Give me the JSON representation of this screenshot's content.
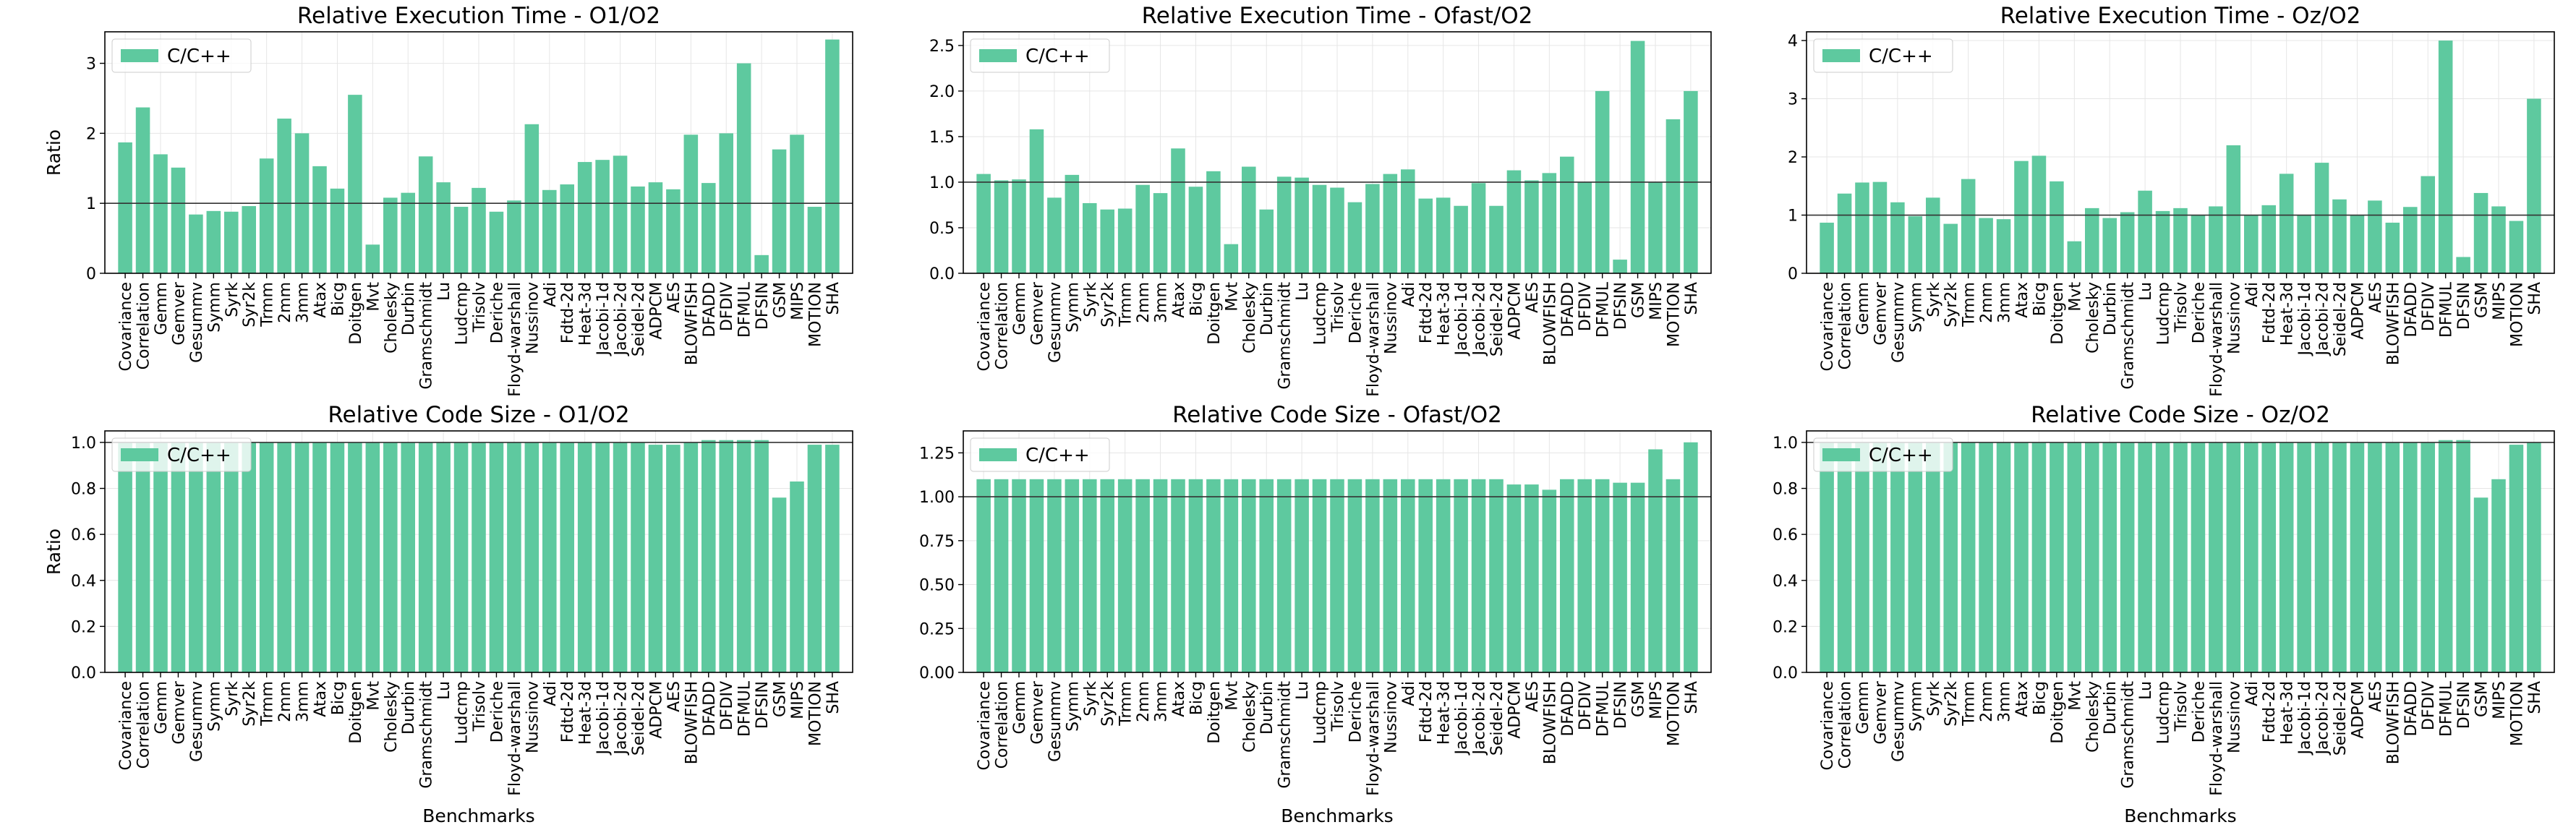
{
  "chart_data": [
    {
      "type": "bar",
      "title": "Relative Execution Time - O1/O2",
      "ylabel": "Ratio",
      "xlabel": "",
      "ylim": [
        0,
        3.45
      ],
      "yticks": [
        0,
        1,
        2,
        3
      ],
      "reference_line": 1.0,
      "legend": "C/C++",
      "legend_position": "top-left",
      "grid": true,
      "categories": [
        "Covariance",
        "Correlation",
        "Gemm",
        "Gemver",
        "Gesummv",
        "Symm",
        "Syrk",
        "Syr2k",
        "Trmm",
        "2mm",
        "3mm",
        "Atax",
        "Bicg",
        "Doitgen",
        "Mvt",
        "Cholesky",
        "Durbin",
        "Gramschmidt",
        "Lu",
        "Ludcmp",
        "Trisolv",
        "Deriche",
        "Floyd-warshall",
        "Nussinov",
        "Adi",
        "Fdtd-2d",
        "Heat-3d",
        "Jacobi-1d",
        "Jacobi-2d",
        "Seidel-2d",
        "ADPCM",
        "AES",
        "BLOWFISH",
        "DFADD",
        "DFDIV",
        "DFMUL",
        "DFSIN",
        "GSM",
        "MIPS",
        "MOTION",
        "SHA"
      ],
      "values": [
        1.87,
        2.37,
        1.7,
        1.51,
        0.84,
        0.89,
        0.88,
        0.96,
        1.64,
        2.21,
        2.0,
        1.53,
        1.21,
        2.55,
        0.41,
        1.08,
        1.15,
        1.67,
        1.3,
        0.95,
        1.22,
        0.88,
        1.04,
        2.13,
        1.19,
        1.27,
        1.59,
        1.62,
        1.68,
        1.24,
        1.3,
        1.2,
        1.98,
        1.29,
        2.0,
        3.0,
        0.26,
        1.77,
        1.98,
        0.95,
        3.34
      ]
    },
    {
      "type": "bar",
      "title": "Relative Execution Time - Ofast/O2",
      "ylabel": "",
      "xlabel": "",
      "ylim": [
        0,
        2.65
      ],
      "yticks": [
        0.0,
        0.5,
        1.0,
        1.5,
        2.0,
        2.5
      ],
      "reference_line": 1.0,
      "legend": "C/C++",
      "legend_position": "top-left",
      "grid": true,
      "categories": [
        "Covariance",
        "Correlation",
        "Gemm",
        "Gemver",
        "Gesummv",
        "Symm",
        "Syrk",
        "Syr2k",
        "Trmm",
        "2mm",
        "3mm",
        "Atax",
        "Bicg",
        "Doitgen",
        "Mvt",
        "Cholesky",
        "Durbin",
        "Gramschmidt",
        "Lu",
        "Ludcmp",
        "Trisolv",
        "Deriche",
        "Floyd-warshall",
        "Nussinov",
        "Adi",
        "Fdtd-2d",
        "Heat-3d",
        "Jacobi-1d",
        "Jacobi-2d",
        "Seidel-2d",
        "ADPCM",
        "AES",
        "BLOWFISH",
        "DFADD",
        "DFDIV",
        "DFMUL",
        "DFSIN",
        "GSM",
        "MIPS",
        "MOTION",
        "SHA"
      ],
      "values": [
        1.09,
        1.02,
        1.03,
        1.58,
        0.83,
        1.08,
        0.77,
        0.7,
        0.71,
        0.97,
        0.88,
        1.37,
        0.95,
        1.12,
        0.32,
        1.17,
        0.7,
        1.06,
        1.05,
        0.97,
        0.94,
        0.78,
        0.98,
        1.09,
        1.14,
        0.82,
        0.83,
        0.74,
        0.99,
        0.74,
        1.13,
        1.02,
        1.1,
        1.28,
        1.0,
        2.0,
        0.15,
        2.55,
        1.0,
        1.69,
        2.0
      ]
    },
    {
      "type": "bar",
      "title": "Relative Execution Time - Oz/O2",
      "ylabel": "",
      "xlabel": "",
      "ylim": [
        0,
        4.15
      ],
      "yticks": [
        0,
        1,
        2,
        3,
        4
      ],
      "reference_line": 1.0,
      "legend": "C/C++",
      "legend_position": "top-left",
      "grid": true,
      "categories": [
        "Covariance",
        "Correlation",
        "Gemm",
        "Gemver",
        "Gesummv",
        "Symm",
        "Syrk",
        "Syr2k",
        "Trmm",
        "2mm",
        "3mm",
        "Atax",
        "Bicg",
        "Doitgen",
        "Mvt",
        "Cholesky",
        "Durbin",
        "Gramschmidt",
        "Lu",
        "Ludcmp",
        "Trisolv",
        "Deriche",
        "Floyd-warshall",
        "Nussinov",
        "Adi",
        "Fdtd-2d",
        "Heat-3d",
        "Jacobi-1d",
        "Jacobi-2d",
        "Seidel-2d",
        "ADPCM",
        "AES",
        "BLOWFISH",
        "DFADD",
        "DFDIV",
        "DFMUL",
        "DFSIN",
        "GSM",
        "MIPS",
        "MOTION",
        "SHA"
      ],
      "values": [
        0.87,
        1.37,
        1.56,
        1.57,
        1.22,
        0.98,
        1.3,
        0.85,
        1.62,
        0.95,
        0.93,
        1.93,
        2.02,
        1.58,
        0.55,
        1.12,
        0.95,
        1.05,
        1.42,
        1.07,
        1.12,
        1.0,
        1.15,
        2.2,
        1.0,
        1.17,
        1.71,
        1.0,
        1.9,
        1.27,
        1.0,
        1.25,
        0.87,
        1.14,
        1.67,
        4.0,
        0.28,
        1.38,
        1.15,
        0.9,
        3.0
      ]
    },
    {
      "type": "bar",
      "title": "Relative Code Size - O1/O2",
      "ylabel": "Ratio",
      "xlabel": "Benchmarks",
      "ylim": [
        0,
        1.05
      ],
      "yticks": [
        0.0,
        0.2,
        0.4,
        0.6,
        0.8,
        1.0
      ],
      "reference_line": 1.0,
      "legend": "C/C++",
      "legend_position": "top-left",
      "grid": true,
      "categories": [
        "Covariance",
        "Correlation",
        "Gemm",
        "Gemver",
        "Gesummv",
        "Symm",
        "Syrk",
        "Syr2k",
        "Trmm",
        "2mm",
        "3mm",
        "Atax",
        "Bicg",
        "Doitgen",
        "Mvt",
        "Cholesky",
        "Durbin",
        "Gramschmidt",
        "Lu",
        "Ludcmp",
        "Trisolv",
        "Deriche",
        "Floyd-warshall",
        "Nussinov",
        "Adi",
        "Fdtd-2d",
        "Heat-3d",
        "Jacobi-1d",
        "Jacobi-2d",
        "Seidel-2d",
        "ADPCM",
        "AES",
        "BLOWFISH",
        "DFADD",
        "DFDIV",
        "DFMUL",
        "DFSIN",
        "GSM",
        "MIPS",
        "MOTION",
        "SHA"
      ],
      "values": [
        1.0,
        1.0,
        1.0,
        1.0,
        1.0,
        1.0,
        1.0,
        1.0,
        1.0,
        1.0,
        1.0,
        1.0,
        1.0,
        1.0,
        1.0,
        1.0,
        1.0,
        1.0,
        1.0,
        1.0,
        1.0,
        1.0,
        1.0,
        1.0,
        1.0,
        1.0,
        1.0,
        1.0,
        1.0,
        1.0,
        0.99,
        0.99,
        1.0,
        1.01,
        1.01,
        1.01,
        1.01,
        0.76,
        0.83,
        0.99,
        0.99
      ]
    },
    {
      "type": "bar",
      "title": "Relative Code Size - Ofast/O2",
      "ylabel": "",
      "xlabel": "Benchmarks",
      "ylim": [
        0,
        1.375
      ],
      "yticks": [
        0.0,
        0.25,
        0.5,
        0.75,
        1.0,
        1.25
      ],
      "reference_line": 1.0,
      "legend": "C/C++",
      "legend_position": "top-left",
      "grid": true,
      "categories": [
        "Covariance",
        "Correlation",
        "Gemm",
        "Gemver",
        "Gesummv",
        "Symm",
        "Syrk",
        "Syr2k",
        "Trmm",
        "2mm",
        "3mm",
        "Atax",
        "Bicg",
        "Doitgen",
        "Mvt",
        "Cholesky",
        "Durbin",
        "Gramschmidt",
        "Lu",
        "Ludcmp",
        "Trisolv",
        "Deriche",
        "Floyd-warshall",
        "Nussinov",
        "Adi",
        "Fdtd-2d",
        "Heat-3d",
        "Jacobi-1d",
        "Jacobi-2d",
        "Seidel-2d",
        "ADPCM",
        "AES",
        "BLOWFISH",
        "DFADD",
        "DFDIV",
        "DFMUL",
        "DFSIN",
        "GSM",
        "MIPS",
        "MOTION",
        "SHA"
      ],
      "values": [
        1.1,
        1.1,
        1.1,
        1.1,
        1.1,
        1.1,
        1.1,
        1.1,
        1.1,
        1.1,
        1.1,
        1.1,
        1.1,
        1.1,
        1.1,
        1.1,
        1.1,
        1.1,
        1.1,
        1.1,
        1.1,
        1.1,
        1.1,
        1.1,
        1.1,
        1.1,
        1.1,
        1.1,
        1.1,
        1.1,
        1.07,
        1.07,
        1.04,
        1.1,
        1.1,
        1.1,
        1.08,
        1.08,
        1.27,
        1.1,
        1.31
      ]
    },
    {
      "type": "bar",
      "title": "Relative Code Size - Oz/O2",
      "ylabel": "",
      "xlabel": "Benchmarks",
      "ylim": [
        0,
        1.05
      ],
      "yticks": [
        0.0,
        0.2,
        0.4,
        0.6,
        0.8,
        1.0
      ],
      "reference_line": 1.0,
      "legend": "C/C++",
      "legend_position": "top-left",
      "grid": true,
      "categories": [
        "Covariance",
        "Correlation",
        "Gemm",
        "Gemver",
        "Gesummv",
        "Symm",
        "Syrk",
        "Syr2k",
        "Trmm",
        "2mm",
        "3mm",
        "Atax",
        "Bicg",
        "Doitgen",
        "Mvt",
        "Cholesky",
        "Durbin",
        "Gramschmidt",
        "Lu",
        "Ludcmp",
        "Trisolv",
        "Deriche",
        "Floyd-warshall",
        "Nussinov",
        "Adi",
        "Fdtd-2d",
        "Heat-3d",
        "Jacobi-1d",
        "Jacobi-2d",
        "Seidel-2d",
        "ADPCM",
        "AES",
        "BLOWFISH",
        "DFADD",
        "DFDIV",
        "DFMUL",
        "DFSIN",
        "GSM",
        "MIPS",
        "MOTION",
        "SHA"
      ],
      "values": [
        1.0,
        1.0,
        1.0,
        1.0,
        1.0,
        1.0,
        1.0,
        1.0,
        1.0,
        1.0,
        1.0,
        1.0,
        1.0,
        1.0,
        1.0,
        1.0,
        1.0,
        1.0,
        1.0,
        1.0,
        1.0,
        1.0,
        1.0,
        1.0,
        1.0,
        1.0,
        1.0,
        1.0,
        1.0,
        1.0,
        1.0,
        1.0,
        1.0,
        1.0,
        1.0,
        1.01,
        1.01,
        0.76,
        0.84,
        0.99,
        1.0
      ]
    }
  ],
  "colors": {
    "bar": "#5ec99f",
    "reference_line": "#333333",
    "grid": "#e6e6e6"
  }
}
